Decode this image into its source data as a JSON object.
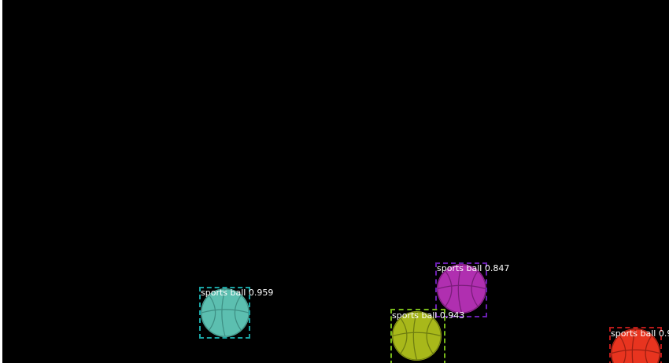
{
  "detections": [
    {
      "label": "sports ball 0.959",
      "class": "sports ball",
      "score": 0.959,
      "color": "#1aa3a3",
      "ball_color": "#5cbfb0"
    },
    {
      "label": "sports ball 0.847",
      "class": "sports ball",
      "score": 0.847,
      "color": "#6a1fb0",
      "ball_color": "#b02fb0"
    },
    {
      "label": "sports ball 0.943",
      "class": "sports ball",
      "score": 0.943,
      "color": "#78b81a",
      "ball_color": "#a8b81a"
    },
    {
      "label": "sports ball 0.9",
      "class": "sports ball",
      "score": 0.9,
      "color": "#b81a1a",
      "ball_color": "#e8341f"
    }
  ],
  "icons": {
    "ball": "basketball-icon"
  }
}
